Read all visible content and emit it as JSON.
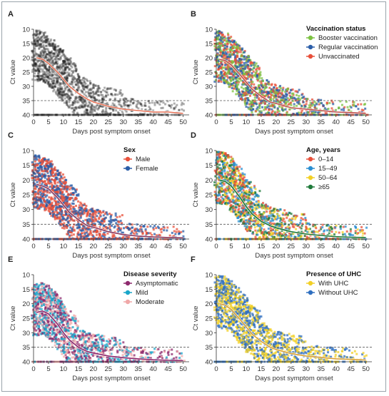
{
  "chart_data": [
    {
      "type": "scatter",
      "panel": "A",
      "reference_line": 35,
      "series": [
        {
          "color": "#1a1a1a",
          "peak": 20,
          "spread": 9
        }
      ],
      "fit_line": [
        [
          1,
          20
        ],
        [
          3,
          20.5
        ],
        [
          5,
          22
        ],
        [
          8,
          25
        ],
        [
          10,
          27.5
        ],
        [
          12,
          30
        ],
        [
          15,
          32.5
        ],
        [
          18,
          34.5
        ],
        [
          20,
          35.5
        ],
        [
          25,
          37
        ],
        [
          30,
          38
        ],
        [
          35,
          38.5
        ],
        [
          40,
          39
        ],
        [
          45,
          39
        ],
        [
          50,
          39.5
        ]
      ],
      "fit_color": "#e8755a"
    },
    {
      "type": "scatter",
      "panel": "B",
      "reference_line": 35,
      "legend_title": "Vaccination status",
      "series": [
        {
          "name": "Booster vaccination",
          "color": "#7cc242"
        },
        {
          "name": "Regular vaccination",
          "color": "#2b5ea8"
        },
        {
          "name": "Unvaccinated",
          "color": "#e8503a"
        }
      ],
      "fit_line": [
        [
          1,
          20.5
        ],
        [
          3,
          21
        ],
        [
          5,
          22.5
        ],
        [
          8,
          26
        ],
        [
          10,
          28.5
        ],
        [
          12,
          31
        ],
        [
          15,
          33.5
        ],
        [
          18,
          35.5
        ],
        [
          20,
          36
        ],
        [
          25,
          37.5
        ],
        [
          30,
          38
        ],
        [
          35,
          38.5
        ],
        [
          40,
          39
        ],
        [
          45,
          39.2
        ],
        [
          50,
          39.5
        ]
      ],
      "fit_color": "#c0504d"
    },
    {
      "type": "scatter",
      "panel": "C",
      "reference_line": 35,
      "legend_title": "Sex",
      "series": [
        {
          "name": "Male",
          "color": "#e8503a"
        },
        {
          "name": "Female",
          "color": "#2b5ea8"
        }
      ],
      "fit_line": [
        [
          1,
          21.5
        ],
        [
          3,
          22
        ],
        [
          5,
          23
        ],
        [
          8,
          26
        ],
        [
          10,
          28.5
        ],
        [
          12,
          31
        ],
        [
          15,
          33.5
        ],
        [
          18,
          35.5
        ],
        [
          20,
          36
        ],
        [
          25,
          37.5
        ],
        [
          30,
          38.5
        ],
        [
          35,
          39
        ],
        [
          40,
          39.3
        ],
        [
          45,
          39.5
        ],
        [
          50,
          39.6
        ]
      ],
      "fit_color": "#8e3a5e"
    },
    {
      "type": "scatter",
      "panel": "D",
      "reference_line": 35,
      "legend_title": "Age, years",
      "series": [
        {
          "name": "0–14",
          "color": "#e8503a"
        },
        {
          "name": "15–49",
          "color": "#2b8fd1"
        },
        {
          "name": "50–64",
          "color": "#f2d026"
        },
        {
          "name": "≥65",
          "color": "#1f7a3a"
        }
      ],
      "fit_line": [
        [
          1,
          20
        ],
        [
          3,
          20.5
        ],
        [
          5,
          22
        ],
        [
          8,
          26
        ],
        [
          10,
          29
        ],
        [
          12,
          31.5
        ],
        [
          15,
          34
        ],
        [
          18,
          35.5
        ],
        [
          20,
          36.2
        ],
        [
          25,
          37.5
        ],
        [
          30,
          38.3
        ],
        [
          35,
          38.8
        ],
        [
          40,
          39.2
        ],
        [
          45,
          39.4
        ],
        [
          50,
          39.5
        ]
      ],
      "fit_color": "#1f7a3a"
    },
    {
      "type": "scatter",
      "panel": "E",
      "reference_line": 35,
      "legend_title": "Disease severity",
      "series": [
        {
          "name": "Asymptomatic",
          "color": "#8e2a6e"
        },
        {
          "name": "Mild",
          "color": "#1aa6c9"
        },
        {
          "name": "Moderate",
          "color": "#f0a8a8"
        }
      ],
      "fit_line": [
        [
          1,
          23
        ],
        [
          3,
          22.5
        ],
        [
          5,
          23.5
        ],
        [
          8,
          27
        ],
        [
          10,
          30
        ],
        [
          12,
          32.5
        ],
        [
          15,
          35
        ],
        [
          18,
          36.5
        ],
        [
          20,
          37
        ],
        [
          25,
          38
        ],
        [
          30,
          38.6
        ],
        [
          35,
          39
        ],
        [
          40,
          39.3
        ],
        [
          45,
          39.5
        ],
        [
          50,
          39.6
        ]
      ],
      "fit_color": "#8e2a6e"
    },
    {
      "type": "scatter",
      "panel": "F",
      "reference_line": 35,
      "legend_title": "Presence of UHC",
      "series": [
        {
          "name": "With UHC",
          "color": "#f2d026"
        },
        {
          "name": "Without UHC",
          "color": "#2f6fc0"
        }
      ],
      "fit_line": [
        [
          1,
          20
        ],
        [
          3,
          20.5
        ],
        [
          5,
          22
        ],
        [
          8,
          25.5
        ],
        [
          10,
          28
        ],
        [
          12,
          30.5
        ],
        [
          15,
          33
        ],
        [
          18,
          35
        ],
        [
          20,
          35.8
        ],
        [
          25,
          37.2
        ],
        [
          30,
          38
        ],
        [
          35,
          38.5
        ],
        [
          40,
          39
        ],
        [
          45,
          39.2
        ],
        [
          50,
          39.4
        ]
      ],
      "fit_color": "#d9a13a"
    }
  ],
  "axes": {
    "xlabel": "Days post symptom onset",
    "ylabel": "Ct value",
    "xlim": [
      0,
      52
    ],
    "ylim": [
      10,
      40
    ],
    "yticks": [
      10,
      15,
      20,
      25,
      30,
      35,
      40
    ],
    "xticks": [
      0,
      5,
      10,
      15,
      20,
      25,
      30,
      35,
      40,
      45,
      50
    ],
    "ylim_reversed": true,
    "grid": false,
    "legend_position": "top-right"
  }
}
